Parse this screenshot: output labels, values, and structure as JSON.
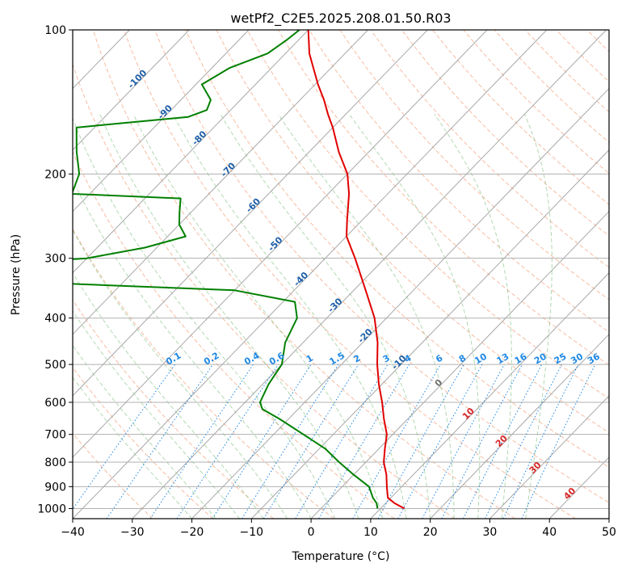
{
  "chart_data": {
    "type": "line",
    "title": "wetPf2_C2E5.2025.208.01.50.R03",
    "xlabel": "Temperature (°C)",
    "ylabel": "Pressure (hPa)",
    "xlim": [
      -40,
      50
    ],
    "ylim": [
      1050,
      100
    ],
    "y_scale": "log",
    "grid": true,
    "x_ticks": [
      -40,
      -30,
      -20,
      -10,
      0,
      10,
      20,
      30,
      40,
      50
    ],
    "y_ticks": [
      100,
      200,
      300,
      400,
      500,
      600,
      700,
      800,
      900,
      1000
    ],
    "isotherm_labels": [
      {
        "text": "-100",
        "t": -100,
        "p": 128
      },
      {
        "text": "-90",
        "t": -90,
        "p": 150
      },
      {
        "text": "-80",
        "t": -80,
        "p": 170
      },
      {
        "text": "-70",
        "t": -70,
        "p": 198
      },
      {
        "text": "-60",
        "t": -60,
        "p": 235
      },
      {
        "text": "-50",
        "t": -50,
        "p": 283
      },
      {
        "text": "-40",
        "t": -40,
        "p": 335
      },
      {
        "text": "-30",
        "t": -30,
        "p": 380
      },
      {
        "text": "-20",
        "t": -20,
        "p": 440
      },
      {
        "text": "-10",
        "t": -10,
        "p": 500
      },
      {
        "text": "0",
        "t": 0,
        "p": 552
      },
      {
        "text": "10",
        "t": 10,
        "p": 640
      },
      {
        "text": "20",
        "t": 20,
        "p": 730
      },
      {
        "text": "30",
        "t": 30,
        "p": 830
      },
      {
        "text": "40",
        "t": 40,
        "p": 940
      }
    ],
    "mixing_ratio_labels": [
      "0.1",
      "0.2",
      "0.4",
      "0.6",
      "1",
      "1.5",
      "2",
      "3",
      "4",
      "6",
      "8",
      "10",
      "13",
      "16",
      "20",
      "25",
      "30",
      "36"
    ],
    "series": [
      {
        "name": "",
        "color": "#e00000",
        "points": [
          [
            1000,
            14
          ],
          [
            975,
            11.5
          ],
          [
            950,
            9.5
          ],
          [
            925,
            8.5
          ],
          [
            900,
            7.5
          ],
          [
            850,
            5.5
          ],
          [
            800,
            3
          ],
          [
            750,
            1
          ],
          [
            700,
            -1
          ],
          [
            650,
            -4
          ],
          [
            600,
            -7
          ],
          [
            550,
            -10.5
          ],
          [
            500,
            -14
          ],
          [
            450,
            -17.5
          ],
          [
            400,
            -22
          ],
          [
            350,
            -28
          ],
          [
            300,
            -35
          ],
          [
            270,
            -40
          ],
          [
            250,
            -42.5
          ],
          [
            220,
            -46.5
          ],
          [
            200,
            -50
          ],
          [
            180,
            -55
          ],
          [
            160,
            -60
          ],
          [
            150,
            -63
          ],
          [
            140,
            -66
          ],
          [
            130,
            -69.5
          ],
          [
            120,
            -73
          ],
          [
            112,
            -76
          ],
          [
            100,
            -80
          ]
        ]
      },
      {
        "name": "",
        "color": "#008000",
        "points": [
          [
            1000,
            9.5
          ],
          [
            975,
            8.5
          ],
          [
            950,
            7
          ],
          [
            900,
            4.5
          ],
          [
            850,
            0
          ],
          [
            800,
            -4.5
          ],
          [
            750,
            -9
          ],
          [
            700,
            -15
          ],
          [
            650,
            -21.5
          ],
          [
            620,
            -26
          ],
          [
            600,
            -27.5
          ],
          [
            550,
            -29
          ],
          [
            500,
            -30
          ],
          [
            450,
            -33
          ],
          [
            400,
            -35
          ],
          [
            370,
            -38
          ],
          [
            350,
            -50
          ],
          [
            335,
            -90
          ],
          [
            306,
            -90
          ],
          [
            300,
            -80
          ],
          [
            285,
            -72
          ],
          [
            270,
            -67
          ],
          [
            255,
            -70
          ],
          [
            240,
            -72
          ],
          [
            225,
            -74
          ],
          [
            220,
            -93
          ],
          [
            200,
            -95
          ],
          [
            180,
            -99
          ],
          [
            160,
            -103
          ],
          [
            157,
            -97
          ],
          [
            152,
            -86
          ],
          [
            147,
            -84
          ],
          [
            140,
            -85
          ],
          [
            130,
            -89
          ],
          [
            120,
            -87
          ],
          [
            112,
            -83
          ],
          [
            105,
            -82
          ],
          [
            100,
            -81.5
          ]
        ]
      }
    ]
  }
}
